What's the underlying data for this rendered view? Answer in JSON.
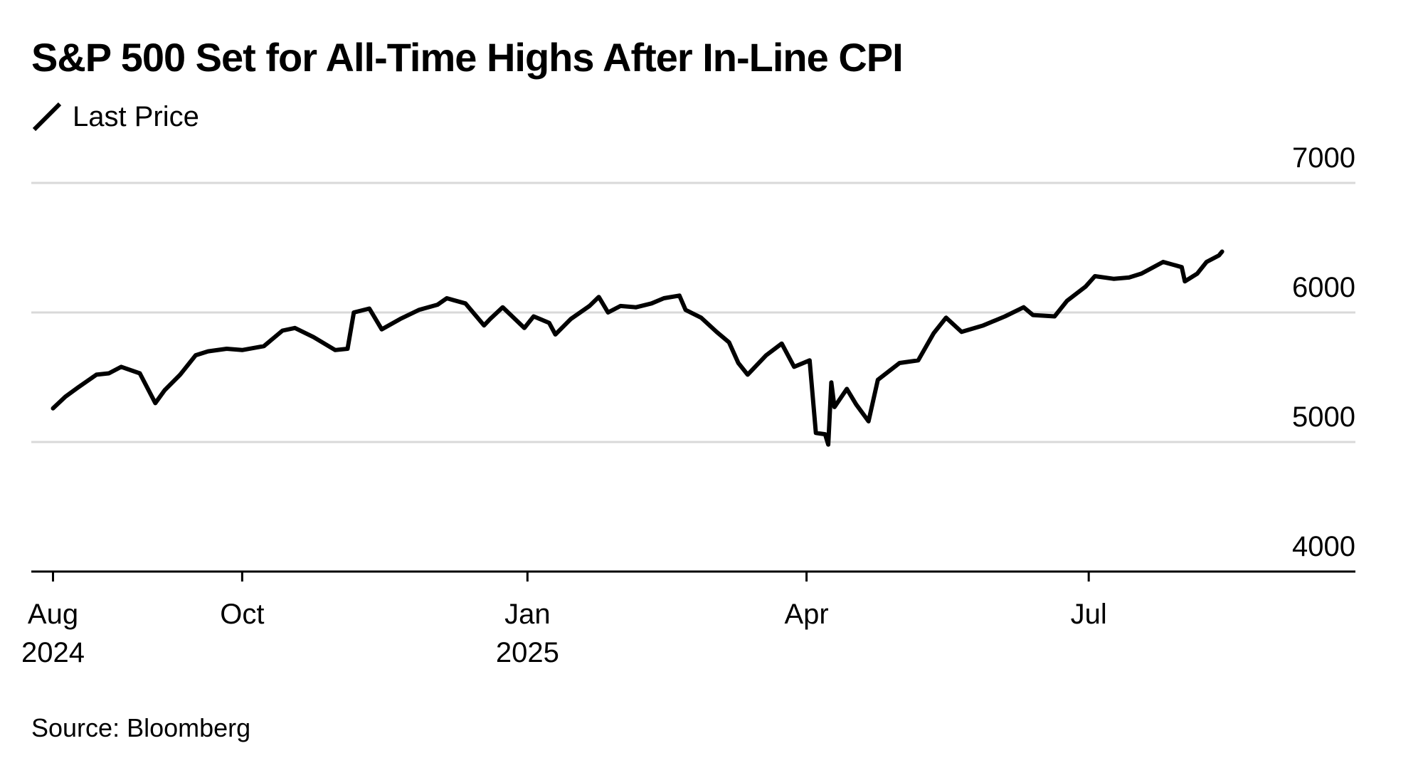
{
  "chart_data": {
    "type": "line",
    "title": "S&P 500 Set for All-Time Highs After In-Line CPI",
    "xlabel": "",
    "ylabel": "",
    "ylim": [
      4000,
      7000
    ],
    "yticks": [
      4000,
      5000,
      6000,
      7000
    ],
    "xlim": [
      "2024-07-25",
      "2025-09-25"
    ],
    "xticks": [
      {
        "date": "2024-08-01",
        "label": "Aug",
        "sublabel": "2024"
      },
      {
        "date": "2024-10-01",
        "label": "Oct",
        "sublabel": ""
      },
      {
        "date": "2025-01-01",
        "label": "Jan",
        "sublabel": "2025"
      },
      {
        "date": "2025-04-01",
        "label": "Apr",
        "sublabel": ""
      },
      {
        "date": "2025-07-01",
        "label": "Jul",
        "sublabel": ""
      }
    ],
    "grid": true,
    "legend": "top-left",
    "series": [
      {
        "name": "Last Price",
        "color": "#000000",
        "x": [
          "2024-08-01",
          "2024-08-05",
          "2024-08-09",
          "2024-08-15",
          "2024-08-19",
          "2024-08-23",
          "2024-08-29",
          "2024-09-03",
          "2024-09-06",
          "2024-09-11",
          "2024-09-16",
          "2024-09-20",
          "2024-09-26",
          "2024-10-01",
          "2024-10-08",
          "2024-10-14",
          "2024-10-18",
          "2024-10-24",
          "2024-10-31",
          "2024-11-04",
          "2024-11-06",
          "2024-11-11",
          "2024-11-15",
          "2024-11-21",
          "2024-11-27",
          "2024-12-03",
          "2024-12-06",
          "2024-12-12",
          "2024-12-18",
          "2024-12-20",
          "2024-12-24",
          "2024-12-31",
          "2025-01-03",
          "2025-01-08",
          "2025-01-10",
          "2025-01-15",
          "2025-01-21",
          "2025-01-24",
          "2025-01-27",
          "2025-01-31",
          "2025-02-05",
          "2025-02-10",
          "2025-02-14",
          "2025-02-19",
          "2025-02-21",
          "2025-02-26",
          "2025-03-03",
          "2025-03-07",
          "2025-03-10",
          "2025-03-13",
          "2025-03-19",
          "2025-03-24",
          "2025-03-28",
          "2025-04-02",
          "2025-04-04",
          "2025-04-07",
          "2025-04-08",
          "2025-04-09",
          "2025-04-10",
          "2025-04-14",
          "2025-04-17",
          "2025-04-21",
          "2025-04-24",
          "2025-05-01",
          "2025-05-07",
          "2025-05-12",
          "2025-05-16",
          "2025-05-21",
          "2025-05-28",
          "2025-06-04",
          "2025-06-10",
          "2025-06-13",
          "2025-06-20",
          "2025-06-24",
          "2025-06-30",
          "2025-07-03",
          "2025-07-09",
          "2025-07-14",
          "2025-07-18",
          "2025-07-25",
          "2025-07-31",
          "2025-08-01",
          "2025-08-05",
          "2025-08-08",
          "2025-08-12",
          "2025-08-13"
        ],
        "y": [
          5260,
          5350,
          5420,
          5520,
          5530,
          5580,
          5530,
          5300,
          5400,
          5520,
          5670,
          5700,
          5720,
          5710,
          5740,
          5860,
          5880,
          5810,
          5710,
          5720,
          6000,
          6030,
          5870,
          5950,
          6020,
          6060,
          6110,
          6070,
          5900,
          5950,
          6040,
          5880,
          5970,
          5920,
          5830,
          5950,
          6050,
          6120,
          6000,
          6050,
          6040,
          6070,
          6110,
          6130,
          6020,
          5960,
          5850,
          5770,
          5610,
          5520,
          5670,
          5760,
          5580,
          5630,
          5070,
          5060,
          4980,
          5460,
          5270,
          5410,
          5290,
          5160,
          5480,
          5610,
          5630,
          5840,
          5960,
          5850,
          5900,
          5970,
          6040,
          5980,
          5970,
          6090,
          6200,
          6280,
          6260,
          6270,
          6300,
          6390,
          6350,
          6240,
          6300,
          6390,
          6440,
          6470
        ]
      }
    ]
  },
  "legend": {
    "label": "Last Price"
  },
  "source": "Source: Bloomberg"
}
